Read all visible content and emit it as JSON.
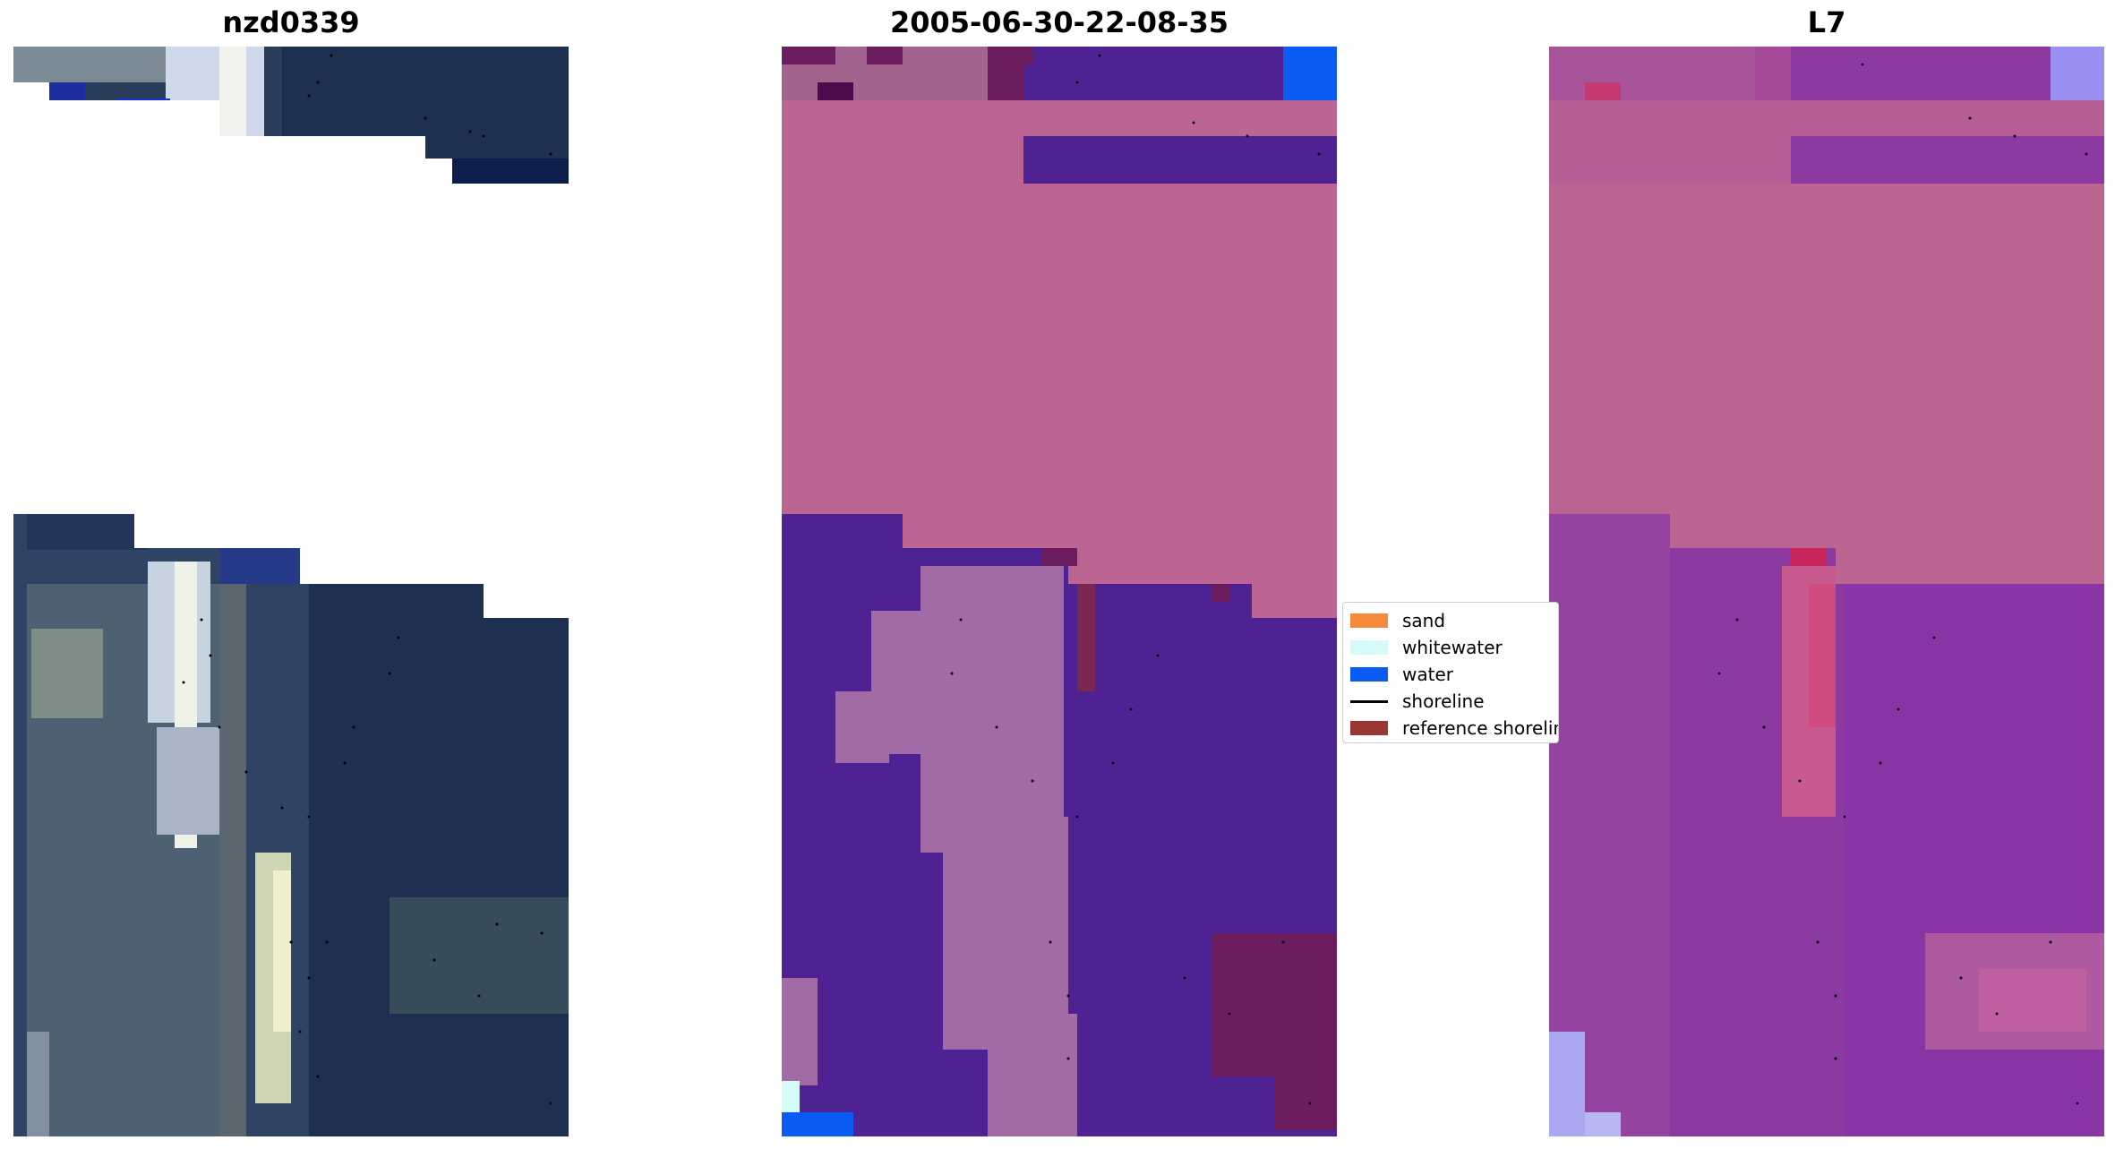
{
  "panels": [
    {
      "title": "nzd0339"
    },
    {
      "title": "2005-06-30-22-08-35"
    },
    {
      "title": "L7"
    }
  ],
  "legend": {
    "items": [
      {
        "label": "sand",
        "color": "#f58a3a",
        "type": "patch"
      },
      {
        "label": "whitewater",
        "color": "#d4fbf7",
        "type": "patch"
      },
      {
        "label": "water",
        "color": "#0a5cf5",
        "type": "patch"
      },
      {
        "label": "shoreline",
        "color": "#000000",
        "type": "line"
      },
      {
        "label": "reference shoreline buffer",
        "color": "#9b3632",
        "type": "patch"
      }
    ]
  },
  "colors": {
    "land_class": "#bc6593",
    "water_class": "#4f2293",
    "dark_water": "#1d2a52",
    "dune_class": "#a36ba6"
  }
}
